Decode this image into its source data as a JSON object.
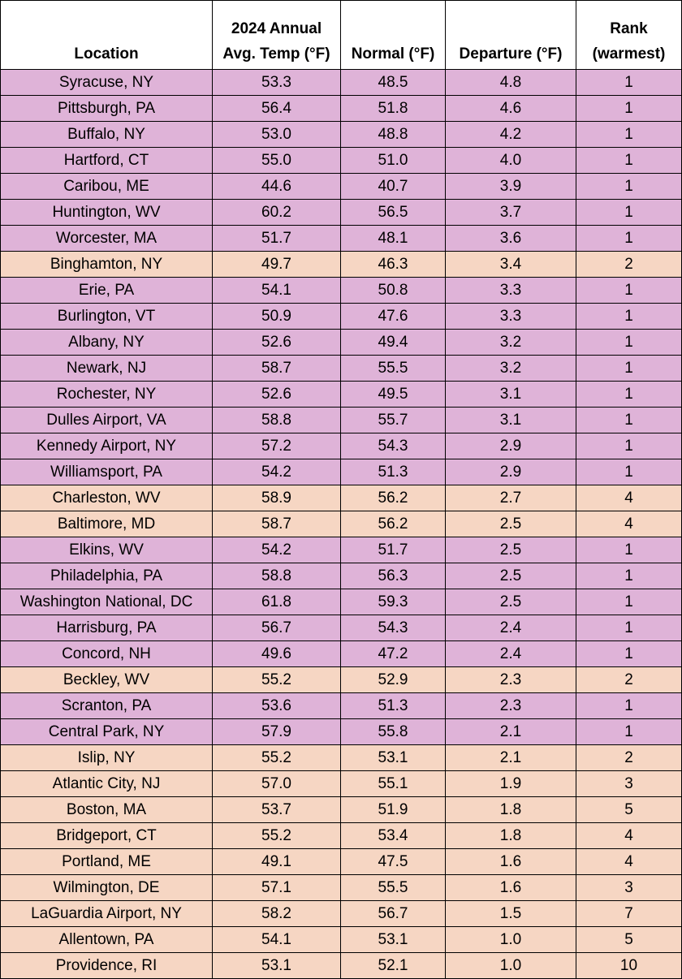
{
  "table": {
    "header": [
      [
        "Location"
      ],
      [
        "2024 Annual",
        "Avg. Temp (°F)"
      ],
      [
        "Normal (°F)"
      ],
      [
        "Departure (°F)"
      ],
      [
        "Rank",
        "(warmest)"
      ]
    ],
    "rows": [
      [
        "Syracuse, NY",
        "53.3",
        "48.5",
        "4.8",
        "1"
      ],
      [
        "Pittsburgh, PA",
        "56.4",
        "51.8",
        "4.6",
        "1"
      ],
      [
        "Buffalo, NY",
        "53.0",
        "48.8",
        "4.2",
        "1"
      ],
      [
        "Hartford, CT",
        "55.0",
        "51.0",
        "4.0",
        "1"
      ],
      [
        "Caribou, ME",
        "44.6",
        "40.7",
        "3.9",
        "1"
      ],
      [
        "Huntington, WV",
        "60.2",
        "56.5",
        "3.7",
        "1"
      ],
      [
        "Worcester, MA",
        "51.7",
        "48.1",
        "3.6",
        "1"
      ],
      [
        "Binghamton, NY",
        "49.7",
        "46.3",
        "3.4",
        "2"
      ],
      [
        "Erie, PA",
        "54.1",
        "50.8",
        "3.3",
        "1"
      ],
      [
        "Burlington, VT",
        "50.9",
        "47.6",
        "3.3",
        "1"
      ],
      [
        "Albany, NY",
        "52.6",
        "49.4",
        "3.2",
        "1"
      ],
      [
        "Newark, NJ",
        "58.7",
        "55.5",
        "3.2",
        "1"
      ],
      [
        "Rochester, NY",
        "52.6",
        "49.5",
        "3.1",
        "1"
      ],
      [
        "Dulles Airport, VA",
        "58.8",
        "55.7",
        "3.1",
        "1"
      ],
      [
        "Kennedy Airport, NY",
        "57.2",
        "54.3",
        "2.9",
        "1"
      ],
      [
        "Williamsport, PA",
        "54.2",
        "51.3",
        "2.9",
        "1"
      ],
      [
        "Charleston, WV",
        "58.9",
        "56.2",
        "2.7",
        "4"
      ],
      [
        "Baltimore, MD",
        "58.7",
        "56.2",
        "2.5",
        "4"
      ],
      [
        "Elkins, WV",
        "54.2",
        "51.7",
        "2.5",
        "1"
      ],
      [
        "Philadelphia, PA",
        "58.8",
        "56.3",
        "2.5",
        "1"
      ],
      [
        "Washington National, DC",
        "61.8",
        "59.3",
        "2.5",
        "1"
      ],
      [
        "Harrisburg, PA",
        "56.7",
        "54.3",
        "2.4",
        "1"
      ],
      [
        "Concord, NH",
        "49.6",
        "47.2",
        "2.4",
        "1"
      ],
      [
        "Beckley, WV",
        "55.2",
        "52.9",
        "2.3",
        "2"
      ],
      [
        "Scranton, PA",
        "53.6",
        "51.3",
        "2.3",
        "1"
      ],
      [
        "Central Park, NY",
        "57.9",
        "55.8",
        "2.1",
        "1"
      ],
      [
        "Islip, NY",
        "55.2",
        "53.1",
        "2.1",
        "2"
      ],
      [
        "Atlantic City, NJ",
        "57.0",
        "55.1",
        "1.9",
        "3"
      ],
      [
        "Boston, MA",
        "53.7",
        "51.9",
        "1.8",
        "5"
      ],
      [
        "Bridgeport, CT",
        "55.2",
        "53.4",
        "1.8",
        "4"
      ],
      [
        "Portland, ME",
        "49.1",
        "47.5",
        "1.6",
        "4"
      ],
      [
        "Wilmington, DE",
        "57.1",
        "55.5",
        "1.6",
        "3"
      ],
      [
        "LaGuardia Airport, NY",
        "58.2",
        "56.7",
        "1.5",
        "7"
      ],
      [
        "Allentown, PA",
        "54.1",
        "53.1",
        "1.0",
        "5"
      ],
      [
        "Providence, RI",
        "53.1",
        "52.1",
        "1.0",
        "10"
      ]
    ]
  }
}
